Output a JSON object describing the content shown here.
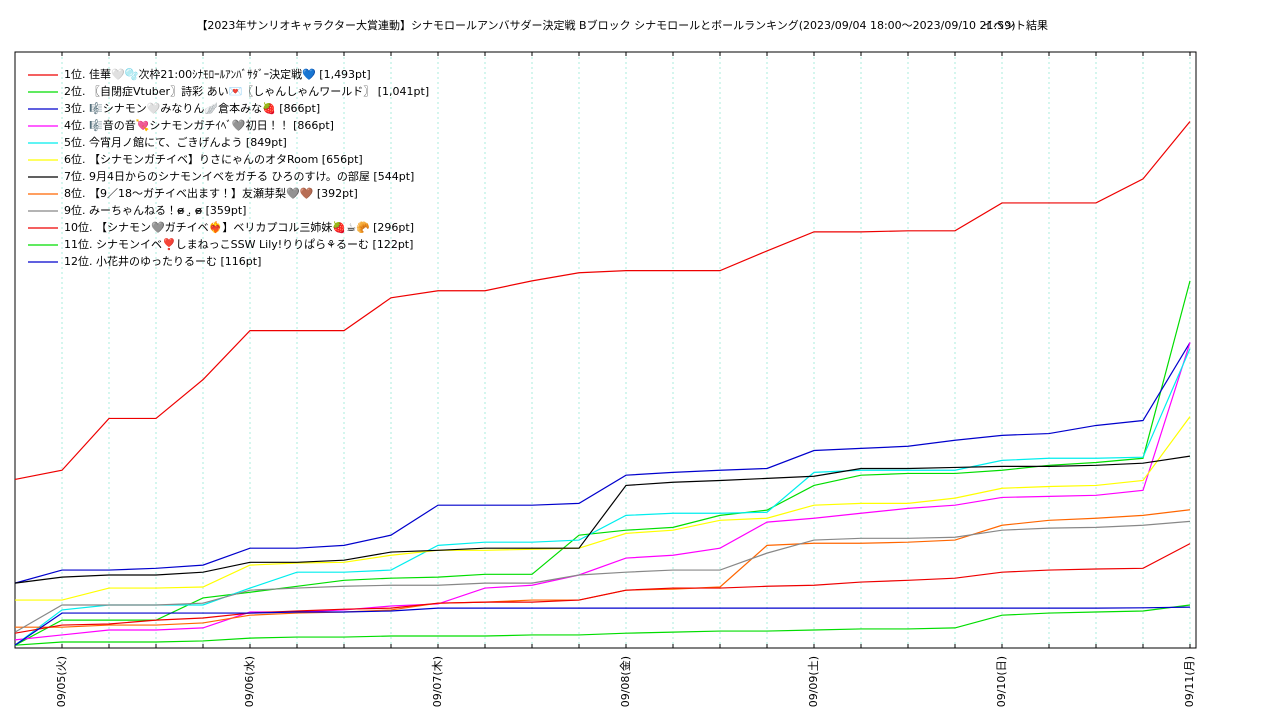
{
  "chart_data": {
    "type": "line",
    "title": "【2023年サンリオキャラクター大賞連動】シナモロールアンバサダー決定戦 Bブロック シナモロールとボールランキング(2023/09/04 18:00～2023/09/10 21:59)",
    "subtitle": "イベント結果",
    "categories": [
      null,
      "09/05(火)",
      null,
      null,
      null,
      "09/06(水)",
      null,
      null,
      null,
      "09/07(木)",
      null,
      null,
      null,
      "09/08(金)",
      null,
      null,
      null,
      "09/09(土)",
      null,
      null,
      null,
      "09/10(日)",
      null,
      null,
      null,
      "09/11(月)"
    ],
    "ylim": [
      0,
      1690
    ],
    "grid": true,
    "legend": "upper-left",
    "series": [
      {
        "name": "1位. 佳華🤍🫧次枠21:00ｼﾅﾓﾛｰﾙｱﾝﾊﾞｻﾀﾞｰ決定戦💙 [1,493pt]",
        "color": "#ee0000",
        "values": [
          478,
          504,
          651,
          651,
          761,
          900,
          900,
          900,
          993,
          1013,
          1013,
          1041,
          1064,
          1070,
          1070,
          1070,
          1126,
          1180,
          1180,
          1183,
          1183,
          1262,
          1262,
          1262,
          1330,
          1493
        ]
      },
      {
        "name": "2位. 〖自閉症Vtuber〗詩彩 あい💌〖しゃんしゃんワールド〗 [1,041pt]",
        "color": "#00dd00",
        "values": [
          8,
          79,
          79,
          79,
          142,
          158,
          175,
          192,
          198,
          201,
          209,
          209,
          320,
          334,
          342,
          376,
          391,
          461,
          490,
          495,
          495,
          504,
          518,
          526,
          538,
          1041
        ]
      },
      {
        "name": "3位. 🎼シナモン🤍みなりん🪽倉本みな🍓 [866pt]",
        "color": "#0000cc",
        "values": [
          184,
          221,
          221,
          226,
          235,
          283,
          283,
          291,
          320,
          405,
          405,
          405,
          410,
          490,
          498,
          504,
          509,
          560,
          566,
          572,
          589,
          603,
          608,
          631,
          645,
          866
        ]
      },
      {
        "name": "4位. 🎼音の音💘シナモンガチｲﾍﾞ🩶初日！！ [866pt]",
        "color": "#ff00ff",
        "values": [
          23,
          37,
          51,
          51,
          57,
          102,
          102,
          108,
          119,
          125,
          170,
          178,
          207,
          255,
          263,
          283,
          357,
          368,
          382,
          396,
          405,
          427,
          430,
          433,
          447,
          866
        ]
      },
      {
        "name": "5位. 今宵月ノ館にて、ごきげんよう [849pt]",
        "color": "#00eeee",
        "values": [
          8,
          108,
          122,
          122,
          122,
          170,
          215,
          215,
          221,
          291,
          300,
          300,
          306,
          376,
          382,
          382,
          385,
          498,
          504,
          504,
          504,
          532,
          538,
          538,
          541,
          849
        ]
      },
      {
        "name": "6位. 【シナモンガチイベ】りさにゃんのオタRoom [656pt]",
        "color": "#ffff00",
        "values": [
          136,
          136,
          170,
          170,
          173,
          235,
          241,
          243,
          263,
          277,
          277,
          280,
          283,
          325,
          334,
          362,
          368,
          405,
          410,
          410,
          425,
          453,
          458,
          461,
          475,
          656
        ]
      },
      {
        "name": "7位. 9月4日からのシナモンイベをガチる ひろのすけ。の部屋 [544pt]",
        "color": "#000000",
        "values": [
          184,
          201,
          207,
          207,
          215,
          243,
          243,
          249,
          272,
          277,
          283,
          283,
          283,
          461,
          470,
          475,
          481,
          487,
          509,
          509,
          512,
          515,
          515,
          518,
          524,
          544
        ]
      },
      {
        "name": "8位. 【9／18〜ガチイベ出ます！】友瀬芽梨🩶🤎 [392pt]",
        "color": "#ff6600",
        "values": [
          59,
          59,
          65,
          65,
          71,
          93,
          99,
          102,
          108,
          127,
          130,
          136,
          136,
          164,
          167,
          173,
          291,
          297,
          297,
          300,
          306,
          348,
          362,
          368,
          376,
          392
        ]
      },
      {
        "name": "9位. みーちゃんねる！ɞ̴̶̷ .̮ ɞ̴̶̷ [359pt]",
        "color": "#888888",
        "values": [
          45,
          122,
          122,
          122,
          127,
          164,
          170,
          175,
          178,
          178,
          184,
          184,
          207,
          215,
          221,
          221,
          269,
          306,
          311,
          311,
          314,
          334,
          340,
          342,
          348,
          359
        ]
      },
      {
        "name": "10位. 【シナモン🩶ガチイベ❤️‍🔥】ベリカプコル三姉妹🍓☕🥐 [296pt]",
        "color": "#ee0000",
        "values": [
          42,
          65,
          68,
          79,
          85,
          99,
          105,
          110,
          113,
          127,
          130,
          130,
          136,
          164,
          170,
          170,
          175,
          178,
          187,
          192,
          198,
          215,
          221,
          224,
          226,
          296
        ]
      },
      {
        "name": "11位. シナモンイベ❣️しまねっこSSW Lily!りりぱら⚘るーむ [122pt]",
        "color": "#00dd00",
        "values": [
          8,
          17,
          17,
          17,
          20,
          28,
          31,
          31,
          34,
          34,
          34,
          37,
          37,
          42,
          45,
          48,
          48,
          51,
          54,
          54,
          57,
          93,
          99,
          102,
          105,
          122
        ]
      },
      {
        "name": "12位. 小花井のゆったりるーむ [116pt]",
        "color": "#0000cc",
        "values": [
          8,
          99,
          99,
          99,
          99,
          99,
          102,
          102,
          105,
          113,
          113,
          113,
          113,
          113,
          113,
          113,
          113,
          113,
          113,
          113,
          113,
          113,
          113,
          113,
          114,
          116
        ]
      }
    ]
  }
}
